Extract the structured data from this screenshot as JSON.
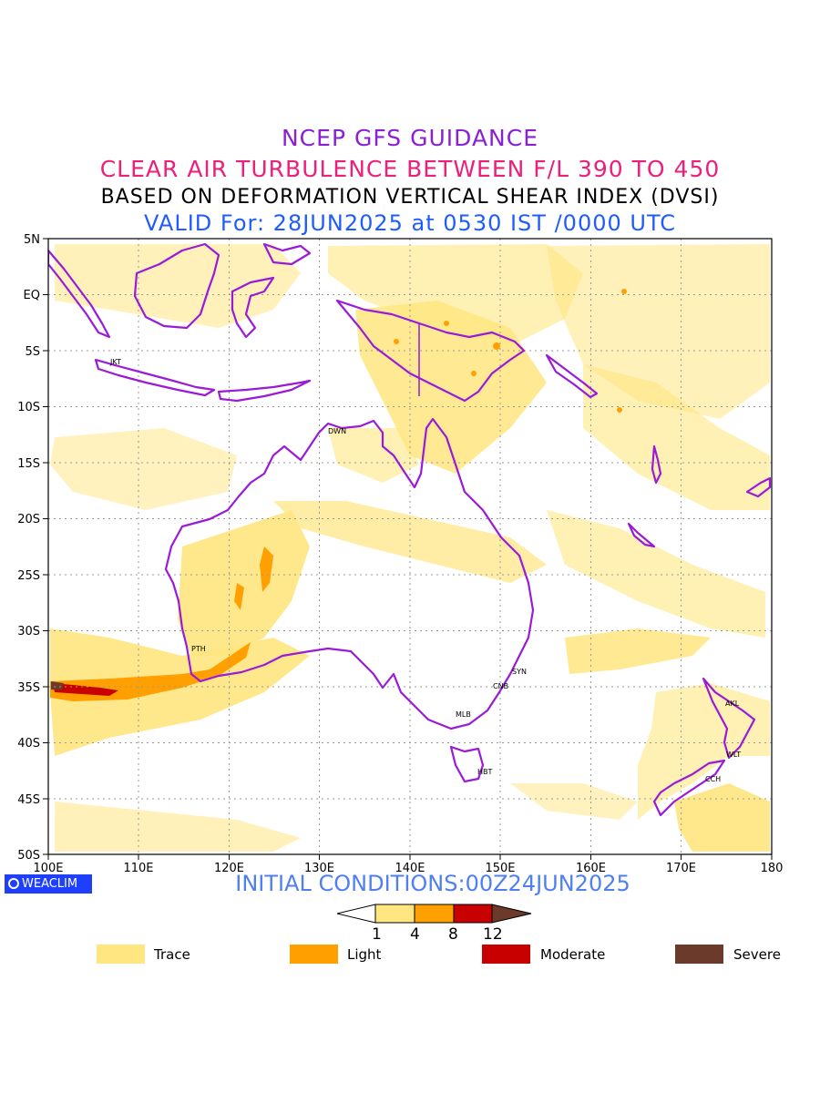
{
  "titles": {
    "line1": "NCEP GFS GUIDANCE",
    "line2": "CLEAR AIR TURBULENCE BETWEEN F/L 390 TO 450",
    "line3": "BASED ON DEFORMATION VERTICAL SHEAR INDEX (DVSI)",
    "line4": "VALID For: 28JUN2025 at 0530 IST /0000 UTC"
  },
  "map": {
    "lat_labels": [
      "5N",
      "EQ",
      "5S",
      "10S",
      "15S",
      "20S",
      "25S",
      "30S",
      "35S",
      "40S",
      "45S",
      "50S"
    ],
    "lon_labels": [
      "100E",
      "110E",
      "120E",
      "130E",
      "140E",
      "150E",
      "160E",
      "170E",
      "180"
    ],
    "coastline_color": "#9a1ad8",
    "cities": [
      {
        "code": "JKT"
      },
      {
        "code": "DWN"
      },
      {
        "code": "PTH"
      },
      {
        "code": "SYN"
      },
      {
        "code": "CNB"
      },
      {
        "code": "MLB"
      },
      {
        "code": "HBT"
      },
      {
        "code": "AKL"
      },
      {
        "code": "WLT"
      },
      {
        "code": "CCH"
      }
    ]
  },
  "footer": {
    "brand": "WEACLIM",
    "init_conditions": "INITIAL CONDITIONS:00Z24JUN2025"
  },
  "colorbar": {
    "ticks": [
      "1",
      "4",
      "8",
      "12"
    ],
    "colors": [
      "#ffffff",
      "#ffe680",
      "#ffa000",
      "#c80000",
      "#6b3a2a"
    ]
  },
  "legend": [
    {
      "label": "Trace",
      "color": "#ffe680"
    },
    {
      "label": "Light",
      "color": "#ffa000"
    },
    {
      "label": "Moderate",
      "color": "#c80000"
    },
    {
      "label": "Severe",
      "color": "#6b3a2a"
    }
  ]
}
